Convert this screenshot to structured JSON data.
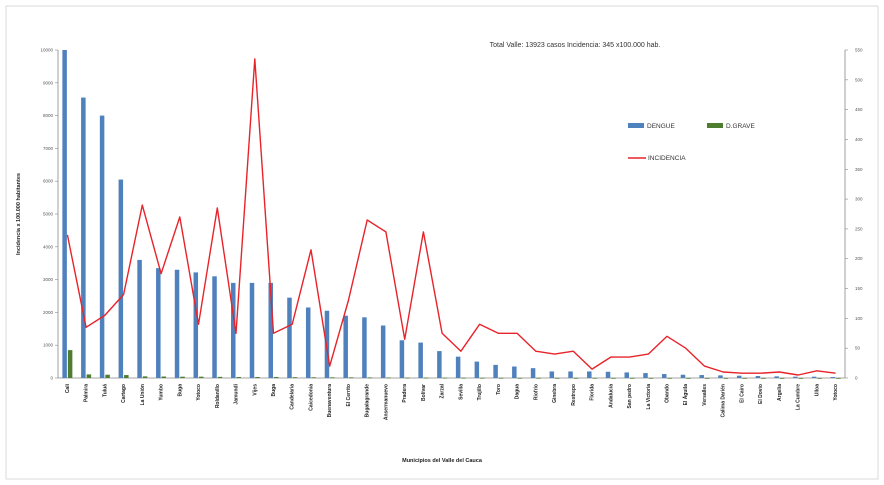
{
  "chart_data": {
    "type": "bar",
    "annotation": "Total Valle: 13923 casos    Incidencia: 345 x100.000 hab.",
    "xlabel": "Municipios del Valle del Cauca",
    "ylabel": "Incidencia x 100.000 habitantes",
    "ylim": [
      0,
      10000
    ],
    "y2lim": [
      0,
      550
    ],
    "yticks": [
      "0",
      "1000",
      "2000",
      "3000",
      "4000",
      "5000",
      "6000",
      "7000",
      "8000",
      "9000",
      "10000"
    ],
    "y2ticks": [
      "0",
      "50",
      "100",
      "150",
      "200",
      "250",
      "300",
      "350",
      "400",
      "450",
      "500",
      "550"
    ],
    "categories": [
      "Cali",
      "Palmira",
      "Tuluá",
      "Cartago",
      "La Unión",
      "Yumbo",
      "Buga",
      "Yotoco",
      "Roldanillo",
      "Jamundí",
      "Vijes",
      "Buga",
      "Candelaria",
      "Caicedonia",
      "Buenaventura",
      "El Cerrito",
      "Bugalagrande",
      "Ansermanuevo",
      "Pradera",
      "Bolívar",
      "Zarzal",
      "Sevilla",
      "Trujillo",
      "Toro",
      "Dagua",
      "Riofrío",
      "Ginebra",
      "Restrepo",
      "Florida",
      "Andalucía",
      "San pedro",
      "La Victoria",
      "Obando",
      "El Águila",
      "Versalles",
      "Calima Darién",
      "El Cairo",
      "El Dovio",
      "Argelia",
      "La Cumbre",
      "Ulloa",
      "Yotoco"
    ],
    "series": [
      {
        "name": "DENGUE",
        "color": "#4f81bd",
        "axis": "left",
        "values": [
          10000,
          8550,
          8000,
          6050,
          3600,
          3350,
          3300,
          3220,
          3100,
          2900,
          2900,
          2900,
          2450,
          2150,
          2050,
          1900,
          1850,
          1600,
          1150,
          1080,
          820,
          650,
          500,
          400,
          350,
          300,
          200,
          200,
          200,
          190,
          170,
          150,
          120,
          100,
          90,
          80,
          70,
          60,
          50,
          40,
          40,
          30
        ]
      },
      {
        "name": "D.GRAVE",
        "color": "#4e7d30",
        "axis": "left",
        "values": [
          850,
          110,
          100,
          90,
          50,
          45,
          40,
          40,
          35,
          30,
          30,
          30,
          25,
          22,
          20,
          20,
          18,
          15,
          12,
          10,
          9,
          8,
          7,
          6,
          5,
          5,
          4,
          4,
          4,
          3,
          3,
          3,
          3,
          2,
          2,
          2,
          2,
          1,
          1,
          1,
          1,
          1
        ]
      },
      {
        "name": "INCIDENCIA",
        "color": "#e8232a",
        "axis": "right",
        "type": "line",
        "values": [
          240,
          85,
          105,
          140,
          290,
          175,
          270,
          90,
          285,
          75,
          535,
          75,
          90,
          215,
          20,
          130,
          265,
          245,
          65,
          245,
          75,
          45,
          90,
          75,
          75,
          45,
          40,
          45,
          15,
          35,
          35,
          40,
          70,
          50,
          20,
          10,
          8,
          8,
          10,
          5,
          12,
          8
        ]
      }
    ],
    "legend": "right",
    "grid": false
  }
}
